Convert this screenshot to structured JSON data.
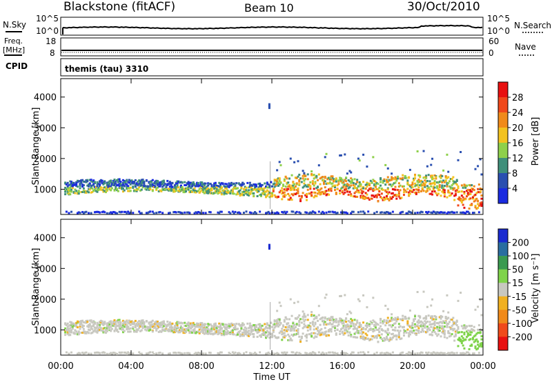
{
  "header": {
    "title": "Blackstone (fitACF)",
    "beam": "Beam 10",
    "date": "30/Oct/2010"
  },
  "noise_panel": {
    "left_label": "N.Sky",
    "left_ticks": [
      "10^5",
      "10^0"
    ],
    "right_ticks": [
      "10^5",
      "10^0"
    ],
    "right_label": "N.Search"
  },
  "freq_panel": {
    "left_label_line1": "Freq.",
    "left_label_line2": "[MHz]",
    "left_ticks": [
      "18",
      "8"
    ],
    "right_ticks": [
      "60",
      "0"
    ],
    "right_label": "Nave"
  },
  "cpid": {
    "label": "CPID",
    "value": "themis (tau) 3310"
  },
  "chart_data": [
    {
      "type": "heatmap",
      "title": "Power",
      "ylabel": "Slant Range [km]",
      "xlabel": "Time UT",
      "x_ticks": [
        "00:00",
        "04:00",
        "08:00",
        "12:00",
        "16:00",
        "20:00",
        "00:00"
      ],
      "y_ticks": [
        1000,
        2000,
        3000,
        4000
      ],
      "ylim": [
        180,
        4600
      ],
      "colorbar_label": "Power [dB]",
      "colorbar_ticks": [
        4,
        8,
        12,
        16,
        20,
        24,
        28
      ],
      "colors": [
        "#1a2be0",
        "#2a4fb0",
        "#3f8f7a",
        "#8ed04a",
        "#f2c21f",
        "#f08a1a",
        "#f0481a",
        "#e81010"
      ]
    },
    {
      "type": "heatmap",
      "title": "Velocity",
      "ylabel": "Slant Range [km]",
      "xlabel": "Time UT",
      "x_ticks": [
        "00:00",
        "04:00",
        "08:00",
        "12:00",
        "16:00",
        "20:00",
        "00:00"
      ],
      "y_ticks": [
        1000,
        2000,
        3000,
        4000
      ],
      "ylim": [
        180,
        4600
      ],
      "colorbar_label": "Velocity [m s⁻¹]",
      "colorbar_ticks": [
        200,
        100,
        50,
        15,
        -15,
        -50,
        -100,
        -200
      ],
      "colors": [
        "#1a2bd0",
        "#2a6ea0",
        "#3a9a50",
        "#7fd34a",
        "#c8c8c0",
        "#f0b020",
        "#f08a1a",
        "#f04a1a",
        "#e81010"
      ]
    }
  ],
  "time_axis": {
    "label": "Time UT",
    "ticks": [
      "00:00",
      "04:00",
      "08:00",
      "12:00",
      "16:00",
      "20:00",
      "00:00"
    ]
  }
}
